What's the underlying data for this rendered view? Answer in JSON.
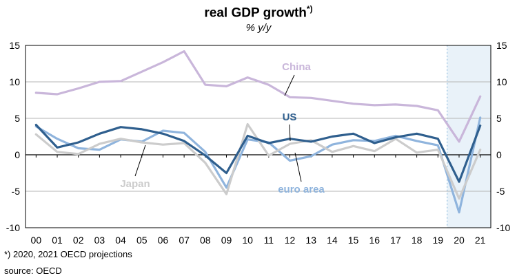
{
  "chart_data": {
    "type": "line",
    "title": "real GDP growth",
    "title_mark": "*)",
    "subtitle": "% y/y",
    "categories": [
      "00",
      "01",
      "02",
      "03",
      "04",
      "05",
      "06",
      "07",
      "08",
      "09",
      "10",
      "11",
      "12",
      "13",
      "14",
      "15",
      "16",
      "17",
      "18",
      "19",
      "20",
      "21"
    ],
    "ylim": [
      -10,
      15
    ],
    "yticks": [
      -10,
      -5,
      0,
      5,
      10,
      15
    ],
    "grid": true,
    "shaded_categories": [
      "20",
      "21"
    ],
    "series": [
      {
        "name": "China",
        "color": "#c9b6da",
        "values": [
          8.5,
          8.3,
          9.1,
          10.0,
          10.1,
          11.4,
          12.7,
          14.2,
          9.6,
          9.4,
          10.6,
          9.6,
          7.9,
          7.8,
          7.4,
          7.0,
          6.8,
          6.9,
          6.7,
          6.1,
          1.8,
          8.0
        ]
      },
      {
        "name": "euro area",
        "color": "#8fb4dd",
        "values": [
          3.9,
          2.2,
          0.9,
          0.7,
          2.1,
          1.8,
          3.3,
          3.0,
          0.4,
          -4.5,
          2.1,
          1.7,
          -0.8,
          -0.2,
          1.4,
          2.0,
          1.9,
          2.6,
          1.9,
          1.3,
          -7.9,
          5.1
        ]
      },
      {
        "name": "Japan",
        "color": "#cccccc",
        "values": [
          2.8,
          0.4,
          0.1,
          1.5,
          2.2,
          1.7,
          1.4,
          1.6,
          -1.1,
          -5.4,
          4.2,
          -0.1,
          1.5,
          2.0,
          0.4,
          1.2,
          0.5,
          2.2,
          0.3,
          0.7,
          -6.0,
          0.7
        ]
      },
      {
        "name": "US",
        "color": "#2f5f8e",
        "values": [
          4.1,
          1.0,
          1.7,
          2.9,
          3.8,
          3.5,
          2.9,
          1.9,
          -0.1,
          -2.5,
          2.6,
          1.6,
          2.2,
          1.8,
          2.5,
          2.9,
          1.6,
          2.4,
          2.9,
          2.2,
          -3.7,
          4.0
        ]
      }
    ]
  },
  "footnote": "*) 2020, 2021 OECD projections",
  "source": "source: OECD"
}
